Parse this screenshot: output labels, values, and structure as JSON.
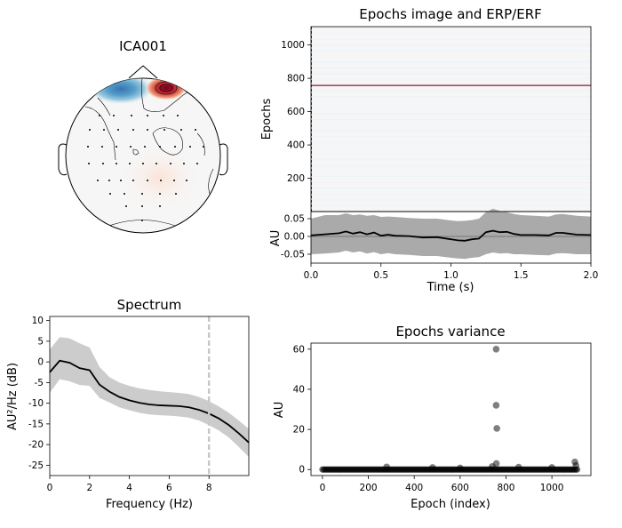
{
  "figure": {
    "window": "MNE ICA component properties"
  },
  "chart_data": [
    {
      "id": "topomap",
      "type": "heatmap",
      "title": "ICA001",
      "colormap": "RdBu_r",
      "features": [
        {
          "name": "positive-peak",
          "color": "#67001f",
          "position": "top-right"
        },
        {
          "name": "negative-peak",
          "color": "#2166ac",
          "position": "top-left"
        }
      ]
    },
    {
      "id": "epochs_image",
      "type": "heatmap",
      "title": "Epochs image and ERP/ERF",
      "ylabel": "Epochs",
      "ylim": [
        0,
        1110
      ],
      "yticks": [
        200,
        400,
        600,
        800,
        1000
      ],
      "highlight_epoch": 757
    },
    {
      "id": "erp",
      "type": "line",
      "xlabel": "Time (s)",
      "ylabel": "AU",
      "xlim": [
        0,
        2
      ],
      "ylim": [
        -0.075,
        0.07
      ],
      "xticks": [
        "0.0",
        "0.5",
        "1.0",
        "1.5",
        "2.0"
      ],
      "yticks": [
        "0.05",
        "0.00",
        "-0.05"
      ],
      "x": [
        0,
        0.1,
        0.2,
        0.25,
        0.3,
        0.35,
        0.4,
        0.45,
        0.5,
        0.55,
        0.6,
        0.7,
        0.8,
        0.9,
        1.0,
        1.05,
        1.1,
        1.15,
        1.2,
        1.25,
        1.3,
        1.35,
        1.4,
        1.45,
        1.5,
        1.6,
        1.7,
        1.75,
        1.8,
        1.9,
        2.0
      ],
      "mean": [
        0.003,
        0.006,
        0.009,
        0.014,
        0.008,
        0.012,
        0.006,
        0.011,
        0.002,
        0.005,
        0.002,
        0.001,
        -0.003,
        -0.002,
        -0.008,
        -0.011,
        -0.012,
        -0.008,
        -0.006,
        0.012,
        0.016,
        0.012,
        0.013,
        0.007,
        0.004,
        0.004,
        0.003,
        0.01,
        0.01,
        0.005,
        0.004
      ],
      "upper": [
        0.05,
        0.06,
        0.06,
        0.065,
        0.06,
        0.062,
        0.058,
        0.06,
        0.055,
        0.056,
        0.055,
        0.052,
        0.05,
        0.05,
        0.045,
        0.043,
        0.044,
        0.046,
        0.05,
        0.068,
        0.078,
        0.072,
        0.068,
        0.063,
        0.06,
        0.058,
        0.056,
        0.062,
        0.063,
        0.058,
        0.056
      ],
      "lower": [
        -0.05,
        -0.048,
        -0.045,
        -0.04,
        -0.045,
        -0.042,
        -0.048,
        -0.044,
        -0.05,
        -0.047,
        -0.05,
        -0.052,
        -0.055,
        -0.055,
        -0.06,
        -0.062,
        -0.063,
        -0.06,
        -0.058,
        -0.05,
        -0.045,
        -0.048,
        -0.047,
        -0.05,
        -0.05,
        -0.052,
        -0.053,
        -0.048,
        -0.047,
        -0.05,
        -0.05
      ]
    },
    {
      "id": "spectrum",
      "type": "line",
      "title": "Spectrum",
      "xlabel": "Frequency (Hz)",
      "ylabel": "AU²/Hz (dB)",
      "xlim": [
        0,
        10
      ],
      "ylim": [
        -27.5,
        11
      ],
      "xticks": [
        "0",
        "2",
        "4",
        "6",
        "8"
      ],
      "yticks": [
        "10",
        "5",
        "0",
        "-5",
        "-10",
        "-15",
        "-20",
        "-25"
      ],
      "vline": 8,
      "x": [
        0,
        0.5,
        1,
        1.5,
        2,
        2.5,
        3,
        3.5,
        4,
        4.5,
        5,
        5.5,
        6,
        6.5,
        7,
        7.5,
        8,
        8.5,
        9,
        9.5,
        10
      ],
      "mean": [
        -2.5,
        0.3,
        -0.2,
        -1.5,
        -2,
        -5.5,
        -7.2,
        -8.5,
        -9.3,
        -9.9,
        -10.3,
        -10.5,
        -10.6,
        -10.7,
        -11,
        -11.6,
        -12.5,
        -13.7,
        -15.3,
        -17.3,
        -19.5
      ],
      "upper": [
        3,
        6,
        5.7,
        4.5,
        3.5,
        -1.2,
        -3.7,
        -5,
        -5.8,
        -6.4,
        -6.8,
        -7.1,
        -7.3,
        -7.5,
        -7.8,
        -8.5,
        -9.5,
        -10.8,
        -12.3,
        -14.2,
        -16.2
      ],
      "lower": [
        -7.5,
        -4.2,
        -4.7,
        -5.6,
        -5.8,
        -8.7,
        -9.8,
        -11,
        -11.7,
        -12.3,
        -12.7,
        -12.9,
        -13,
        -13.2,
        -13.5,
        -14.2,
        -15.3,
        -16.6,
        -18.3,
        -20.6,
        -23
      ]
    },
    {
      "id": "variance",
      "type": "scatter",
      "title": "Epochs variance",
      "xlabel": "Epoch (index)",
      "ylabel": "AU",
      "xlim": [
        -50,
        1170
      ],
      "ylim": [
        -3,
        63
      ],
      "xticks": [
        "0",
        "200",
        "400",
        "600",
        "800",
        "1000"
      ],
      "yticks": [
        "0",
        "20",
        "40",
        "60"
      ],
      "bulk": {
        "from": 0,
        "to": 1110,
        "y": 0
      },
      "points": [
        {
          "x": 757,
          "y": 60
        },
        {
          "x": 757,
          "y": 32
        },
        {
          "x": 760,
          "y": 20.5
        },
        {
          "x": 758,
          "y": 3
        },
        {
          "x": 280,
          "y": 1.3
        },
        {
          "x": 480,
          "y": 1
        },
        {
          "x": 855,
          "y": 1.2
        },
        {
          "x": 1000,
          "y": 1
        },
        {
          "x": 1100,
          "y": 3.8
        },
        {
          "x": 1105,
          "y": 2
        },
        {
          "x": 740,
          "y": 1.5
        },
        {
          "x": 600,
          "y": 0.8
        }
      ]
    }
  ]
}
